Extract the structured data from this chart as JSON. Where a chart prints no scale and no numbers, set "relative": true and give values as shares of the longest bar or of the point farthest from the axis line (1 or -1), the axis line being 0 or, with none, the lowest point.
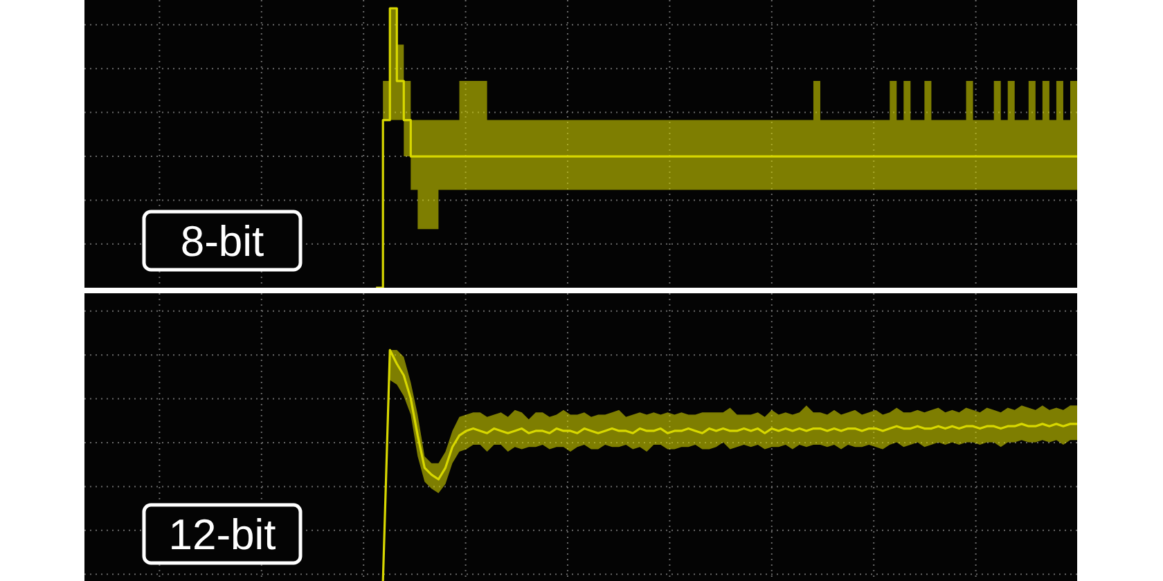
{
  "chart_data": [
    {
      "type": "step",
      "title": "8-bit",
      "relative": true,
      "grid": true,
      "tick_labels": false,
      "categories": [
        null,
        null,
        null,
        null,
        null,
        null,
        null,
        null,
        null,
        null,
        null,
        null,
        null,
        null,
        null,
        null,
        null,
        null,
        null,
        null,
        null,
        null,
        null,
        null,
        null,
        null,
        null,
        null,
        null,
        null,
        null,
        null,
        null,
        null,
        null,
        null,
        null,
        null,
        null,
        null,
        null,
        null,
        null,
        null,
        null,
        null,
        null,
        null,
        null,
        null,
        null,
        null,
        null,
        null,
        null,
        null,
        null,
        null,
        null,
        null,
        null,
        null,
        null,
        null,
        null,
        null,
        null,
        null,
        null,
        null,
        null,
        null,
        null,
        null,
        null,
        null,
        null,
        null,
        null,
        null,
        null,
        null,
        null,
        null,
        null,
        null,
        null,
        null,
        null,
        null,
        null,
        null,
        null,
        null,
        null,
        null,
        null,
        null,
        null,
        null,
        null,
        null,
        null,
        null,
        null,
        null,
        null,
        null,
        null,
        null,
        null,
        null,
        null,
        null,
        null,
        null,
        null,
        null,
        null,
        null,
        null,
        null,
        null,
        null,
        null,
        null,
        null,
        null,
        null,
        null,
        null,
        null,
        null,
        null,
        null,
        null,
        null,
        null,
        null,
        null,
        null,
        null,
        null,
        null
      ],
      "series": [
        {
          "color": "#d8d800",
          "values": [
            null,
            null,
            null,
            null,
            null,
            null,
            null,
            null,
            null,
            null,
            null,
            null,
            null,
            null,
            null,
            null,
            null,
            null,
            null,
            null,
            null,
            null,
            null,
            null,
            null,
            null,
            null,
            null,
            null,
            null,
            null,
            null,
            null,
            null,
            null,
            null,
            null,
            null,
            null,
            null,
            null,
            null,
            0,
            0.6,
            1,
            0.74,
            0.6,
            0.47,
            0.47,
            0.47,
            0.47,
            0.47,
            0.47,
            0.47,
            0.47,
            0.47,
            0.47,
            0.47,
            0.47,
            0.47,
            0.47,
            0.47,
            0.47,
            0.47,
            0.47,
            0.47,
            0.47,
            0.47,
            0.47,
            0.47,
            0.47,
            0.47,
            0.47,
            0.47,
            0.47,
            0.47,
            0.47,
            0.47,
            0.47,
            0.47,
            0.47,
            0.47,
            0.47,
            0.47,
            0.47,
            0.47,
            0.47,
            0.47,
            0.47,
            0.47,
            0.47,
            0.47,
            0.47,
            0.47,
            0.47,
            0.47,
            0.47,
            0.47,
            0.47,
            0.47,
            0.47,
            0.47,
            0.47,
            0.47,
            0.47,
            0.47,
            0.47,
            0.47,
            0.47,
            0.47,
            0.47,
            0.47,
            0.47,
            0.47,
            0.47,
            0.47,
            0.47,
            0.47,
            0.47,
            0.47,
            0.47,
            0.47,
            0.47,
            0.47,
            0.47,
            0.47,
            0.47,
            0.47,
            0.47,
            0.47,
            0.47,
            0.47,
            0.47,
            0.47,
            0.47,
            0.47,
            0.47,
            0.47,
            0.47,
            0.47,
            0.47,
            0.47,
            0.47,
            0.47
          ],
          "lower": [
            null,
            null,
            null,
            null,
            null,
            null,
            null,
            null,
            null,
            null,
            null,
            null,
            null,
            null,
            null,
            null,
            null,
            null,
            null,
            null,
            null,
            null,
            null,
            null,
            null,
            null,
            null,
            null,
            null,
            null,
            null,
            null,
            null,
            null,
            null,
            null,
            null,
            null,
            null,
            null,
            null,
            null,
            0,
            0.6,
            0.6,
            0.6,
            0.47,
            0.35,
            0.21,
            0.21,
            0.21,
            0.35,
            0.35,
            0.35,
            0.35,
            0.35,
            0.35,
            0.35,
            0.35,
            0.35,
            0.35,
            0.35,
            0.35,
            0.35,
            0.35,
            0.35,
            0.35,
            0.35,
            0.35,
            0.35,
            0.35,
            0.35,
            0.35,
            0.35,
            0.35,
            0.35,
            0.35,
            0.35,
            0.35,
            0.35,
            0.35,
            0.35,
            0.35,
            0.35,
            0.35,
            0.35,
            0.35,
            0.35,
            0.35,
            0.35,
            0.35,
            0.35,
            0.35,
            0.35,
            0.35,
            0.35,
            0.35,
            0.35,
            0.35,
            0.35,
            0.35,
            0.35,
            0.35,
            0.35,
            0.35,
            0.35,
            0.35,
            0.35,
            0.35,
            0.35,
            0.35,
            0.35,
            0.35,
            0.35,
            0.35,
            0.35,
            0.35,
            0.35,
            0.35,
            0.35,
            0.35,
            0.35,
            0.35,
            0.35,
            0.35,
            0.35,
            0.35,
            0.35,
            0.35,
            0.35,
            0.35,
            0.35,
            0.35,
            0.35,
            0.35,
            0.35,
            0.35,
            0.35,
            0.35,
            0.35,
            0.35,
            0.35,
            0.35,
            0.35
          ],
          "upper": [
            null,
            null,
            null,
            null,
            null,
            null,
            null,
            null,
            null,
            null,
            null,
            null,
            null,
            null,
            null,
            null,
            null,
            null,
            null,
            null,
            null,
            null,
            null,
            null,
            null,
            null,
            null,
            null,
            null,
            null,
            null,
            null,
            null,
            null,
            null,
            null,
            null,
            null,
            null,
            null,
            null,
            null,
            0,
            0.74,
            1,
            0.87,
            0.74,
            0.6,
            0.6,
            0.6,
            0.6,
            0.6,
            0.6,
            0.6,
            0.74,
            0.74,
            0.74,
            0.74,
            0.6,
            0.6,
            0.6,
            0.6,
            0.6,
            0.6,
            0.6,
            0.6,
            0.6,
            0.6,
            0.6,
            0.6,
            0.6,
            0.6,
            0.6,
            0.6,
            0.6,
            0.6,
            0.6,
            0.6,
            0.6,
            0.6,
            0.6,
            0.6,
            0.6,
            0.6,
            0.6,
            0.6,
            0.6,
            0.6,
            0.6,
            0.6,
            0.6,
            0.6,
            0.6,
            0.6,
            0.6,
            0.6,
            0.6,
            0.6,
            0.6,
            0.6,
            0.6,
            0.6,
            0.6,
            0.6,
            0.6,
            0.74,
            0.6,
            0.6,
            0.6,
            0.6,
            0.6,
            0.6,
            0.6,
            0.6,
            0.6,
            0.6,
            0.74,
            0.6,
            0.74,
            0.6,
            0.6,
            0.74,
            0.6,
            0.6,
            0.6,
            0.6,
            0.6,
            0.74,
            0.6,
            0.6,
            0.6,
            0.74,
            0.6,
            0.74,
            0.6,
            0.6,
            0.74,
            0.6,
            0.74,
            0.6,
            0.74,
            0.6,
            0.74,
            0.6
          ]
        }
      ]
    },
    {
      "type": "line",
      "title": "12-bit",
      "relative": true,
      "grid": true,
      "tick_labels": false,
      "categories": [
        null,
        null,
        null,
        null,
        null,
        null,
        null,
        null,
        null,
        null,
        null,
        null,
        null,
        null,
        null,
        null,
        null,
        null,
        null,
        null,
        null,
        null,
        null,
        null,
        null,
        null,
        null,
        null,
        null,
        null,
        null,
        null,
        null,
        null,
        null,
        null,
        null,
        null,
        null,
        null,
        null,
        null,
        null,
        null,
        null,
        null,
        null,
        null,
        null,
        null,
        null,
        null,
        null,
        null,
        null,
        null,
        null,
        null,
        null,
        null,
        null,
        null,
        null,
        null,
        null,
        null,
        null,
        null,
        null,
        null,
        null,
        null,
        null,
        null,
        null,
        null,
        null,
        null,
        null,
        null,
        null,
        null,
        null,
        null,
        null,
        null,
        null,
        null,
        null,
        null,
        null,
        null,
        null,
        null,
        null,
        null,
        null,
        null,
        null,
        null,
        null,
        null,
        null,
        null,
        null,
        null,
        null,
        null,
        null,
        null,
        null,
        null,
        null,
        null,
        null,
        null,
        null,
        null,
        null,
        null,
        null,
        null,
        null,
        null,
        null,
        null,
        null,
        null,
        null,
        null,
        null,
        null,
        null,
        null,
        null,
        null,
        null,
        null,
        null,
        null,
        null,
        null,
        null,
        null
      ],
      "series": [
        {
          "color": "#d8d800",
          "values": [
            null,
            null,
            null,
            null,
            null,
            null,
            null,
            null,
            null,
            null,
            null,
            null,
            null,
            null,
            null,
            null,
            null,
            null,
            null,
            null,
            null,
            null,
            null,
            null,
            null,
            null,
            null,
            null,
            null,
            null,
            null,
            null,
            null,
            null,
            null,
            null,
            null,
            null,
            null,
            null,
            null,
            null,
            null,
            0,
            1,
            0.94,
            0.89,
            0.79,
            0.63,
            0.49,
            0.46,
            0.44,
            0.49,
            0.58,
            0.63,
            0.65,
            0.66,
            0.65,
            0.64,
            0.66,
            0.65,
            0.64,
            0.65,
            0.66,
            0.64,
            0.65,
            0.65,
            0.64,
            0.66,
            0.65,
            0.65,
            0.64,
            0.66,
            0.65,
            0.64,
            0.65,
            0.66,
            0.65,
            0.65,
            0.64,
            0.66,
            0.65,
            0.65,
            0.66,
            0.64,
            0.65,
            0.65,
            0.66,
            0.65,
            0.64,
            0.66,
            0.65,
            0.66,
            0.65,
            0.65,
            0.66,
            0.65,
            0.66,
            0.64,
            0.66,
            0.65,
            0.66,
            0.65,
            0.66,
            0.65,
            0.66,
            0.66,
            0.65,
            0.66,
            0.65,
            0.66,
            0.66,
            0.65,
            0.66,
            0.66,
            0.65,
            0.66,
            0.67,
            0.66,
            0.66,
            0.67,
            0.66,
            0.66,
            0.67,
            0.66,
            0.67,
            0.66,
            0.67,
            0.67,
            0.66,
            0.67,
            0.67,
            0.66,
            0.67,
            0.67,
            0.68,
            0.67,
            0.67,
            0.68,
            0.67,
            0.68,
            0.67,
            0.68,
            0.68
          ],
          "lower": [
            null,
            null,
            null,
            null,
            null,
            null,
            null,
            null,
            null,
            null,
            null,
            null,
            null,
            null,
            null,
            null,
            null,
            null,
            null,
            null,
            null,
            null,
            null,
            null,
            null,
            null,
            null,
            null,
            null,
            null,
            null,
            null,
            null,
            null,
            null,
            null,
            null,
            null,
            null,
            null,
            null,
            null,
            null,
            0,
            0.87,
            0.85,
            0.8,
            0.72,
            0.54,
            0.43,
            0.4,
            0.38,
            0.42,
            0.51,
            0.56,
            0.57,
            0.59,
            0.59,
            0.56,
            0.59,
            0.59,
            0.56,
            0.58,
            0.57,
            0.58,
            0.58,
            0.59,
            0.57,
            0.58,
            0.58,
            0.56,
            0.58,
            0.59,
            0.57,
            0.57,
            0.59,
            0.58,
            0.58,
            0.59,
            0.57,
            0.58,
            0.56,
            0.59,
            0.59,
            0.57,
            0.57,
            0.58,
            0.58,
            0.59,
            0.57,
            0.57,
            0.58,
            0.6,
            0.57,
            0.58,
            0.59,
            0.58,
            0.59,
            0.57,
            0.58,
            0.58,
            0.59,
            0.57,
            0.59,
            0.58,
            0.59,
            0.59,
            0.58,
            0.59,
            0.57,
            0.59,
            0.58,
            0.58,
            0.59,
            0.58,
            0.57,
            0.59,
            0.6,
            0.58,
            0.59,
            0.6,
            0.58,
            0.59,
            0.6,
            0.59,
            0.6,
            0.59,
            0.6,
            0.6,
            0.59,
            0.6,
            0.6,
            0.58,
            0.6,
            0.6,
            0.61,
            0.6,
            0.6,
            0.61,
            0.6,
            0.61,
            0.59,
            0.61,
            0.61
          ],
          "upper": [
            null,
            null,
            null,
            null,
            null,
            null,
            null,
            null,
            null,
            null,
            null,
            null,
            null,
            null,
            null,
            null,
            null,
            null,
            null,
            null,
            null,
            null,
            null,
            null,
            null,
            null,
            null,
            null,
            null,
            null,
            null,
            null,
            null,
            null,
            null,
            null,
            null,
            null,
            null,
            null,
            null,
            null,
            null,
            0,
            1,
            1,
            0.97,
            0.86,
            0.72,
            0.54,
            0.51,
            0.51,
            0.56,
            0.65,
            0.71,
            0.72,
            0.73,
            0.73,
            0.71,
            0.72,
            0.73,
            0.71,
            0.74,
            0.73,
            0.7,
            0.73,
            0.73,
            0.71,
            0.72,
            0.74,
            0.72,
            0.72,
            0.73,
            0.71,
            0.72,
            0.72,
            0.73,
            0.74,
            0.71,
            0.72,
            0.73,
            0.72,
            0.73,
            0.72,
            0.73,
            0.72,
            0.73,
            0.72,
            0.72,
            0.73,
            0.73,
            0.73,
            0.73,
            0.75,
            0.72,
            0.72,
            0.72,
            0.73,
            0.71,
            0.74,
            0.72,
            0.73,
            0.72,
            0.73,
            0.76,
            0.73,
            0.73,
            0.72,
            0.74,
            0.72,
            0.73,
            0.74,
            0.72,
            0.73,
            0.74,
            0.72,
            0.73,
            0.75,
            0.73,
            0.73,
            0.74,
            0.73,
            0.74,
            0.75,
            0.73,
            0.74,
            0.73,
            0.75,
            0.74,
            0.73,
            0.75,
            0.74,
            0.73,
            0.75,
            0.74,
            0.76,
            0.75,
            0.74,
            0.76,
            0.74,
            0.75,
            0.74,
            0.76,
            0.76
          ]
        }
      ]
    }
  ]
}
